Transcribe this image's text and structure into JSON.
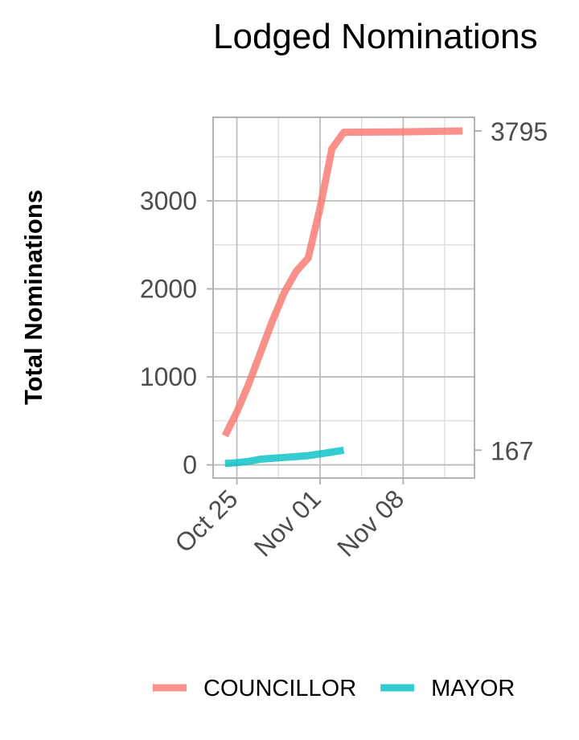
{
  "chart_data": {
    "type": "line",
    "title": "Lodged Nominations",
    "xlabel": "",
    "ylabel": "Total Nominations",
    "x_axis_type": "date",
    "xlim": [
      "2020-10-23",
      "2020-11-14"
    ],
    "ylim": [
      -150,
      3950
    ],
    "x_ticks": [
      {
        "date": "2020-10-25",
        "label": "Oct 25"
      },
      {
        "date": "2020-11-01",
        "label": "Nov 01"
      },
      {
        "date": "2020-11-08",
        "label": "Nov 08"
      }
    ],
    "y_ticks": [
      0,
      1000,
      2000,
      3000
    ],
    "secondary_y_labels": [
      3795,
      167
    ],
    "grid": true,
    "legend_position": "bottom",
    "series": [
      {
        "name": "COUNCILLOR",
        "color": "#F8766D",
        "points": [
          {
            "x": "2020-10-24",
            "y": 330
          },
          {
            "x": "2020-10-25",
            "y": 600
          },
          {
            "x": "2020-10-26",
            "y": 920
          },
          {
            "x": "2020-10-27",
            "y": 1280
          },
          {
            "x": "2020-10-28",
            "y": 1640
          },
          {
            "x": "2020-10-29",
            "y": 1960
          },
          {
            "x": "2020-10-30",
            "y": 2200
          },
          {
            "x": "2020-10-31",
            "y": 2350
          },
          {
            "x": "2020-11-01",
            "y": 2920
          },
          {
            "x": "2020-11-02",
            "y": 3590
          },
          {
            "x": "2020-11-03",
            "y": 3780
          },
          {
            "x": "2020-11-08",
            "y": 3785
          },
          {
            "x": "2020-11-13",
            "y": 3795
          }
        ]
      },
      {
        "name": "MAYOR",
        "color": "#00BFC4",
        "points": [
          {
            "x": "2020-10-24",
            "y": 15
          },
          {
            "x": "2020-10-25",
            "y": 25
          },
          {
            "x": "2020-10-26",
            "y": 40
          },
          {
            "x": "2020-10-27",
            "y": 65
          },
          {
            "x": "2020-10-28",
            "y": 75
          },
          {
            "x": "2020-10-29",
            "y": 85
          },
          {
            "x": "2020-10-30",
            "y": 95
          },
          {
            "x": "2020-10-31",
            "y": 105
          },
          {
            "x": "2020-11-01",
            "y": 125
          },
          {
            "x": "2020-11-02",
            "y": 145
          },
          {
            "x": "2020-11-03",
            "y": 167
          }
        ]
      }
    ]
  }
}
